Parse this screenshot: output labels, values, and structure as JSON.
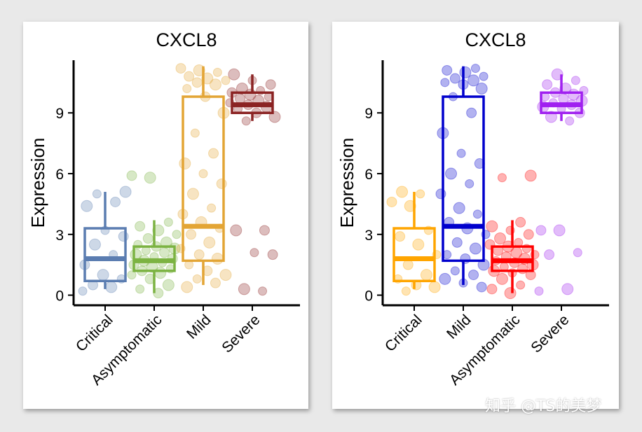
{
  "chart_data": [
    {
      "type": "box",
      "title": "CXCL8",
      "ylabel": "Expression",
      "xlabel": "",
      "ylim": [
        -0.5,
        11.6
      ],
      "yticks": [
        0,
        3,
        6,
        9
      ],
      "categories": [
        "Critical",
        "Asymptomatic",
        "Mild",
        "Severe"
      ],
      "colors": [
        "#5b7db1",
        "#7cb342",
        "#e3a535",
        "#8b2323"
      ],
      "boxes": [
        {
          "q1": 0.7,
          "median": 1.8,
          "q3": 3.3,
          "whisker_low": 0.3,
          "whisker_high": 5.1
        },
        {
          "q1": 1.2,
          "median": 1.7,
          "q3": 2.4,
          "whisker_low": 0.1,
          "whisker_high": 3.7
        },
        {
          "q1": 1.7,
          "median": 3.4,
          "q3": 9.8,
          "whisker_low": 0.5,
          "whisker_high": 11.3
        },
        {
          "q1": 9.0,
          "median": 9.4,
          "q3": 10.0,
          "whisker_low": 8.6,
          "whisker_high": 10.9
        }
      ],
      "points": [
        [
          0.2,
          0.4,
          0.5,
          0.8,
          1.0,
          1.5,
          2.0,
          2.5,
          2.9,
          3.2,
          4.4,
          4.6,
          5.0,
          5.1
        ],
        [
          0.1,
          0.3,
          0.5,
          0.8,
          1.0,
          1.1,
          1.2,
          1.3,
          1.4,
          1.5,
          1.6,
          1.7,
          1.8,
          1.9,
          2.0,
          2.1,
          2.2,
          2.3,
          2.4,
          2.5,
          2.6,
          2.8,
          3.0,
          3.2,
          3.4,
          3.6,
          5.8,
          5.9
        ],
        [
          0.4,
          0.6,
          0.8,
          1.0,
          1.2,
          1.5,
          1.8,
          2.0,
          2.3,
          2.6,
          3.0,
          3.3,
          3.6,
          4.0,
          4.3,
          5.0,
          5.5,
          6.0,
          6.5,
          7.0,
          8.0,
          9.0,
          9.8,
          10.2,
          10.4,
          10.5,
          10.6,
          10.7,
          10.8,
          11.0,
          11.1,
          11.2
        ],
        [
          0.2,
          0.3,
          2.0,
          2.1,
          3.2,
          3.2,
          8.6,
          8.8,
          9.0,
          9.2,
          9.3,
          9.4,
          9.5,
          9.6,
          9.7,
          9.8,
          9.9,
          10.0,
          10.1,
          10.2,
          10.4,
          10.6,
          10.9
        ]
      ]
    },
    {
      "type": "box",
      "title": "CXCL8",
      "ylabel": "Expression",
      "xlabel": "",
      "ylim": [
        -0.5,
        11.6
      ],
      "yticks": [
        0,
        3,
        6,
        9
      ],
      "categories": [
        "Critical",
        "Mild",
        "Asymptomatic",
        "Severe"
      ],
      "colors": [
        "#ffa500",
        "#0000cd",
        "#ff0000",
        "#a020f0"
      ],
      "boxes": [
        {
          "q1": 0.7,
          "median": 1.8,
          "q3": 3.3,
          "whisker_low": 0.3,
          "whisker_high": 5.1
        },
        {
          "q1": 1.7,
          "median": 3.4,
          "q3": 9.8,
          "whisker_low": 0.5,
          "whisker_high": 11.3
        },
        {
          "q1": 1.2,
          "median": 1.7,
          "q3": 2.4,
          "whisker_low": 0.1,
          "whisker_high": 3.7
        },
        {
          "q1": 9.0,
          "median": 9.4,
          "q3": 10.0,
          "whisker_low": 8.6,
          "whisker_high": 10.9
        }
      ],
      "points": [
        [
          0.2,
          0.4,
          0.5,
          0.8,
          1.0,
          1.5,
          2.0,
          2.5,
          2.9,
          3.2,
          4.4,
          4.6,
          5.0,
          5.1
        ],
        [
          0.4,
          0.6,
          0.8,
          1.0,
          1.2,
          1.5,
          1.8,
          2.0,
          2.3,
          2.6,
          3.0,
          3.3,
          3.6,
          4.0,
          4.3,
          5.0,
          5.5,
          6.0,
          6.5,
          7.0,
          8.0,
          9.0,
          9.8,
          10.2,
          10.4,
          10.5,
          10.6,
          10.7,
          10.8,
          11.0,
          11.1,
          11.2
        ],
        [
          0.1,
          0.3,
          0.5,
          0.8,
          1.0,
          1.1,
          1.2,
          1.3,
          1.4,
          1.5,
          1.6,
          1.7,
          1.8,
          1.9,
          2.0,
          2.1,
          2.2,
          2.3,
          2.4,
          2.5,
          2.6,
          2.8,
          3.0,
          3.2,
          3.4,
          3.6,
          5.8,
          5.9
        ],
        [
          0.2,
          0.3,
          2.0,
          2.1,
          3.2,
          3.2,
          8.6,
          8.8,
          9.0,
          9.2,
          9.3,
          9.4,
          9.5,
          9.6,
          9.7,
          9.8,
          9.9,
          10.0,
          10.1,
          10.2,
          10.4,
          10.6,
          10.9
        ]
      ]
    }
  ],
  "watermark": "知乎 @TS的美梦"
}
